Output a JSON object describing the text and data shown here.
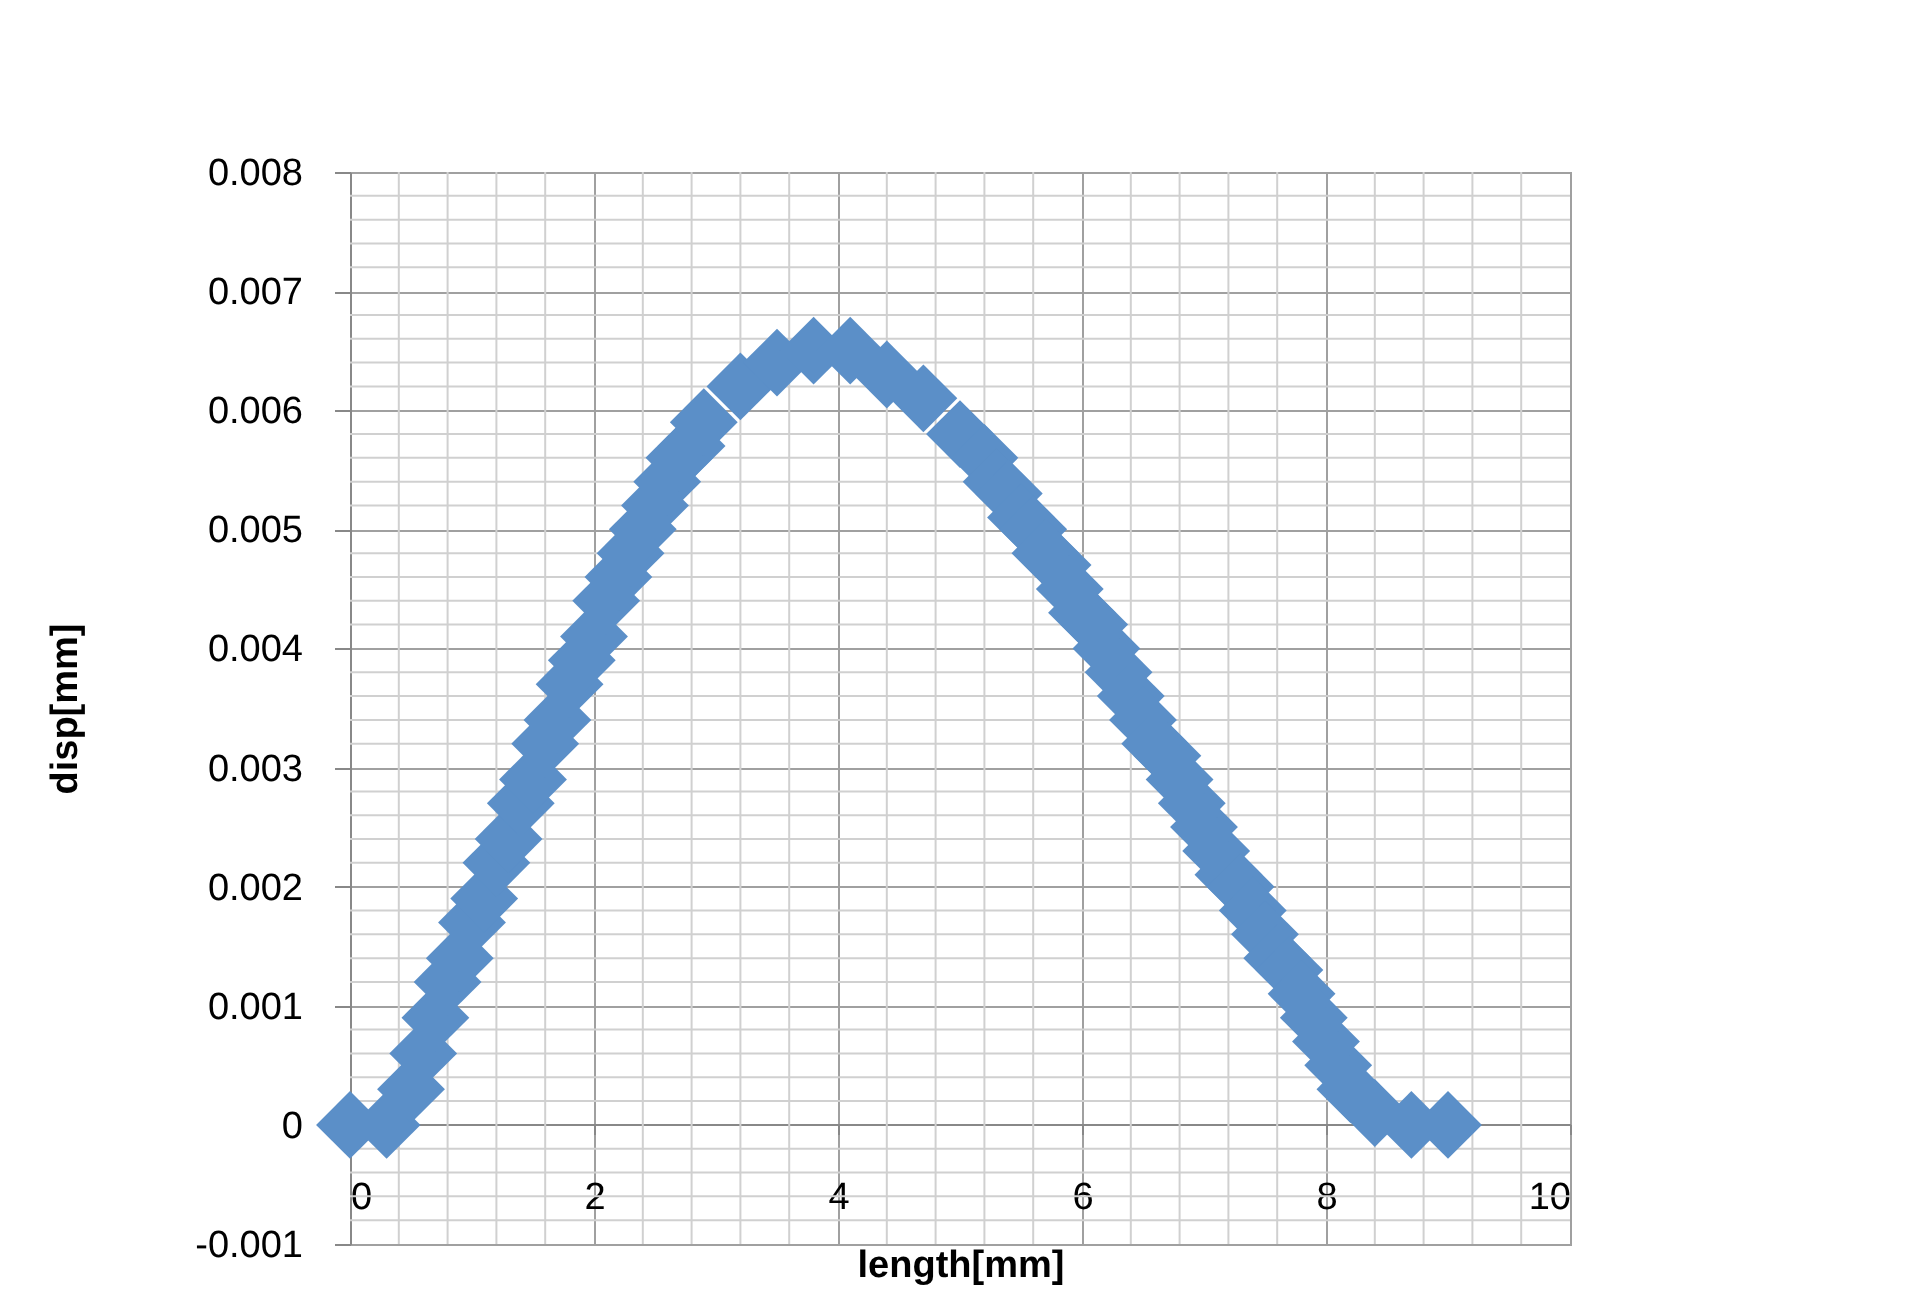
{
  "chart_data": {
    "type": "scatter",
    "xlabel": "length[mm]",
    "ylabel": "disp[mm]",
    "x": [
      0,
      0.3,
      0.5,
      0.6,
      0.7,
      0.8,
      0.9,
      1.0,
      1.1,
      1.2,
      1.3,
      1.4,
      1.5,
      1.6,
      1.7,
      1.8,
      1.9,
      2.0,
      2.1,
      2.2,
      2.3,
      2.4,
      2.5,
      2.6,
      2.7,
      2.8,
      2.9,
      3.2,
      3.5,
      3.8,
      4.1,
      4.4,
      4.7,
      5.0,
      5.2,
      5.3,
      5.4,
      5.5,
      5.6,
      5.7,
      5.8,
      5.9,
      6.0,
      6.1,
      6.2,
      6.3,
      6.4,
      6.5,
      6.6,
      6.7,
      6.8,
      6.9,
      7.0,
      7.1,
      7.2,
      7.3,
      7.4,
      7.5,
      7.6,
      7.7,
      7.8,
      7.9,
      8.0,
      8.1,
      8.2,
      8.4,
      8.7,
      9.0
    ],
    "series": [
      {
        "color": "#5b8fc8",
        "values": [
          0,
          0,
          0.0003,
          0.0006,
          0.0009,
          0.0012,
          0.0014,
          0.0017,
          0.0019,
          0.0022,
          0.0024,
          0.0027,
          0.0029,
          0.0032,
          0.0034,
          0.0037,
          0.0039,
          0.0041,
          0.0044,
          0.0046,
          0.0048,
          0.005,
          0.0052,
          0.0054,
          0.0056,
          0.0057,
          0.0059,
          0.0062,
          0.0064,
          0.0065,
          0.0065,
          0.0063,
          0.0061,
          0.0058,
          0.0056,
          0.0054,
          0.0053,
          0.0051,
          0.005,
          0.0048,
          0.0047,
          0.0045,
          0.0043,
          0.0042,
          0.004,
          0.0038,
          0.0036,
          0.0034,
          0.0032,
          0.0031,
          0.0029,
          0.0027,
          0.0025,
          0.0023,
          0.0021,
          0.002,
          0.0018,
          0.0016,
          0.0014,
          0.0013,
          0.0011,
          0.0009,
          0.0007,
          0.0005,
          0.0003,
          0.0001,
          0,
          0
        ]
      }
    ],
    "xlim": [
      0,
      10
    ],
    "xticks": [
      0,
      2,
      4,
      6,
      8,
      10
    ],
    "ylim": [
      -0.001,
      0.008
    ],
    "yticks": [
      -0.001,
      0,
      0.001,
      0.002,
      0.003,
      0.004,
      0.005,
      0.006,
      0.007,
      0.008
    ],
    "grid": true,
    "marker": "diamond"
  }
}
